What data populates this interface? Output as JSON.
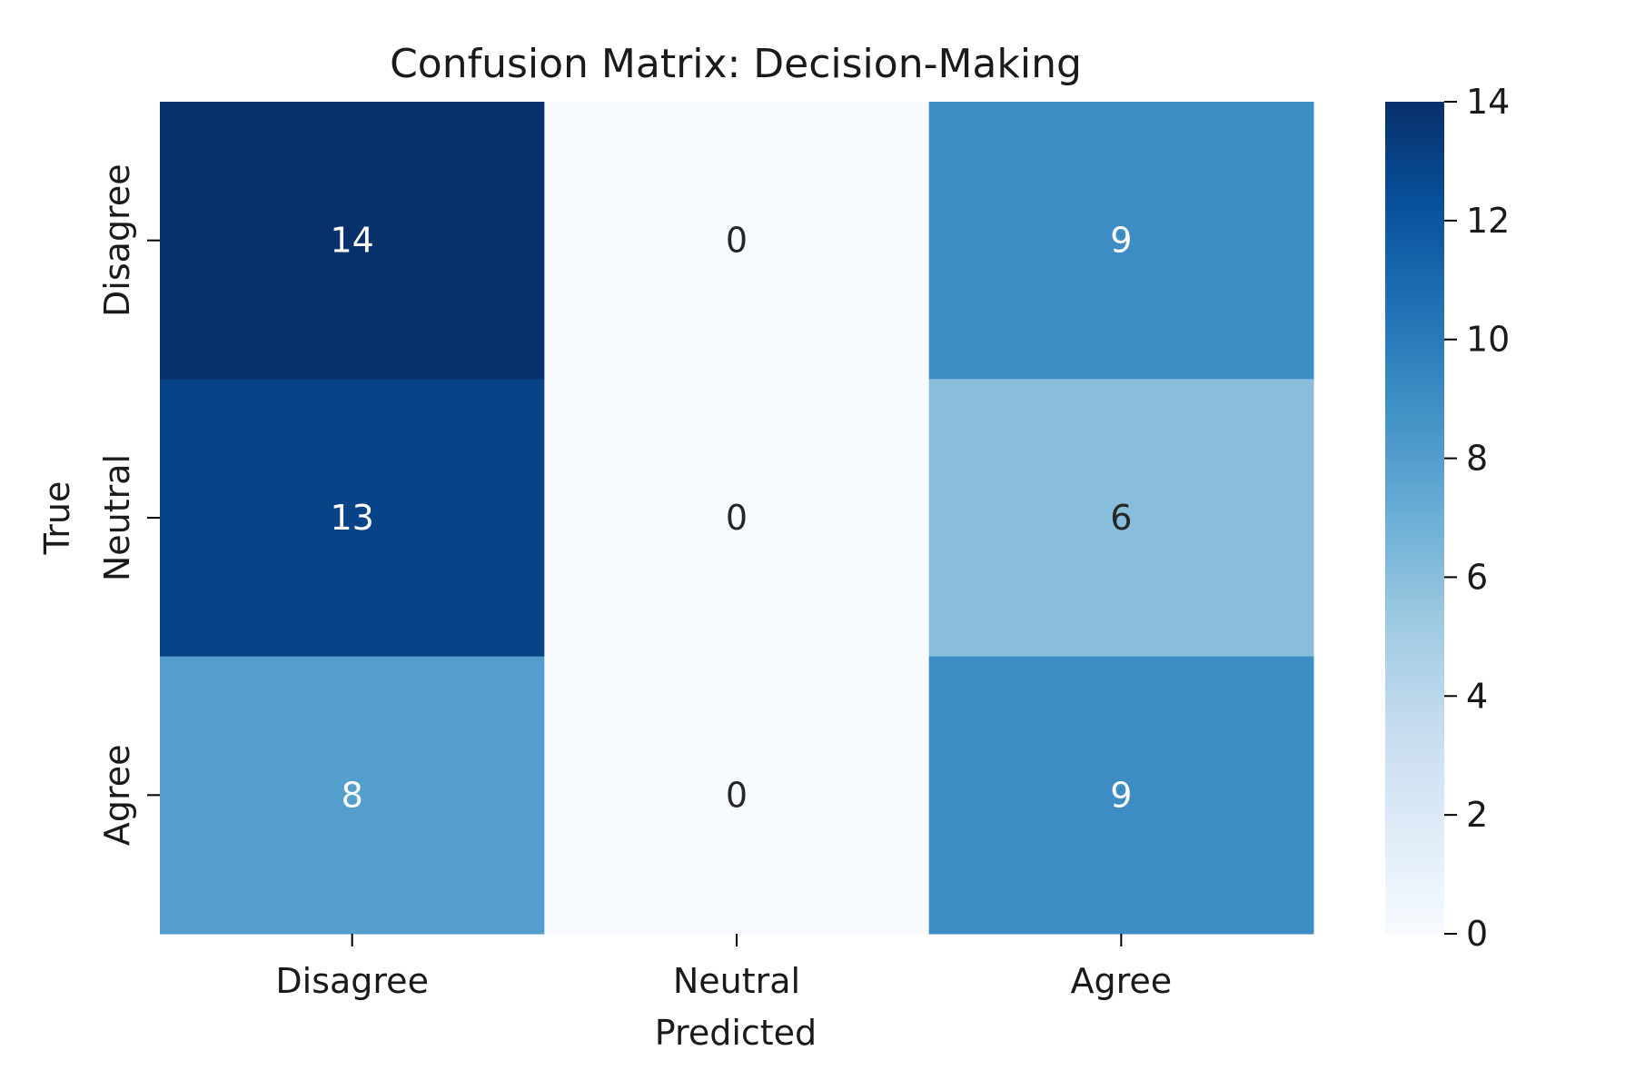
{
  "chart_data": {
    "type": "heatmap",
    "title": "Confusion Matrix: Decision-Making",
    "xlabel": "Predicted",
    "ylabel": "True",
    "x_categories": [
      "Disagree",
      "Neutral",
      "Agree"
    ],
    "y_categories": [
      "Disagree",
      "Neutral",
      "Agree"
    ],
    "values": [
      [
        14,
        0,
        9
      ],
      [
        13,
        0,
        6
      ],
      [
        8,
        0,
        9
      ]
    ],
    "colorbar": {
      "min": 0,
      "max": 14,
      "ticks": [
        0,
        2,
        4,
        6,
        8,
        10,
        12,
        14
      ]
    },
    "colormap": "Blues",
    "grid": false
  }
}
